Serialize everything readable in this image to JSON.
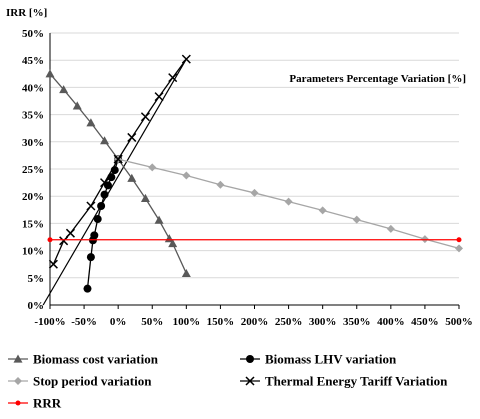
{
  "chart_data": {
    "type": "line",
    "ylabel": "IRR [%]",
    "xlabel": "Parameters Percentage Variation  [%]",
    "xlim": [
      -100,
      500
    ],
    "ylim": [
      0,
      50
    ],
    "x_ticks": [
      "-100%",
      "-50%",
      "0%",
      "50%",
      "100%",
      "150%",
      "200%",
      "250%",
      "300%",
      "350%",
      "400%",
      "450%",
      "500%"
    ],
    "y_ticks": [
      "0%",
      "5%",
      "10%",
      "15%",
      "20%",
      "25%",
      "30%",
      "35%",
      "40%",
      "45%",
      "50%"
    ],
    "grid": "horizontal",
    "legend_placement": "bottom",
    "series": [
      {
        "name": "Biomass cost variation",
        "color": "#595959",
        "marker": "triangle",
        "x": [
          -100,
          -80,
          -60,
          -40,
          -20,
          0,
          20,
          40,
          60,
          75,
          80,
          100
        ],
        "y": [
          42.5,
          39.6,
          36.6,
          33.5,
          30.2,
          26.8,
          23.3,
          19.6,
          15.6,
          12.2,
          11.3,
          5.8
        ]
      },
      {
        "name": "Biomass LHV variation",
        "color": "#000000",
        "marker": "circle",
        "x": [
          -45,
          -40,
          -37,
          -35,
          -30,
          -25,
          -20,
          -15,
          -10,
          -5,
          0
        ],
        "y": [
          3.0,
          8.8,
          11.9,
          12.8,
          15.8,
          18.2,
          20.3,
          22.0,
          23.5,
          24.8,
          26.8
        ]
      },
      {
        "name": "Stop period variation",
        "color": "#a6a6a6",
        "marker": "diamond",
        "x": [
          0,
          50,
          100,
          150,
          200,
          250,
          300,
          350,
          400,
          450,
          500
        ],
        "y": [
          26.8,
          25.3,
          23.8,
          22.1,
          20.6,
          19.0,
          17.4,
          15.7,
          14.0,
          12.1,
          10.4
        ]
      },
      {
        "name": "Thermal Energy Tariff Variation",
        "color": "#000000",
        "marker": "x",
        "x": [
          -95,
          -80,
          -70,
          -40,
          -20,
          0,
          20,
          40,
          60,
          80,
          100
        ],
        "y": [
          7.5,
          11.8,
          13.2,
          18.2,
          22.5,
          26.8,
          30.8,
          34.6,
          38.3,
          41.8,
          45.2
        ]
      },
      {
        "name": "RRR",
        "color": "#ff0000",
        "marker": "dot",
        "x": [
          -100,
          500
        ],
        "y": [
          12,
          12
        ]
      }
    ],
    "line_only": [
      {
        "of_series": "Thermal Energy Tariff Variation",
        "x": [
          -110,
          100
        ],
        "y": [
          0,
          45.2
        ]
      }
    ]
  }
}
